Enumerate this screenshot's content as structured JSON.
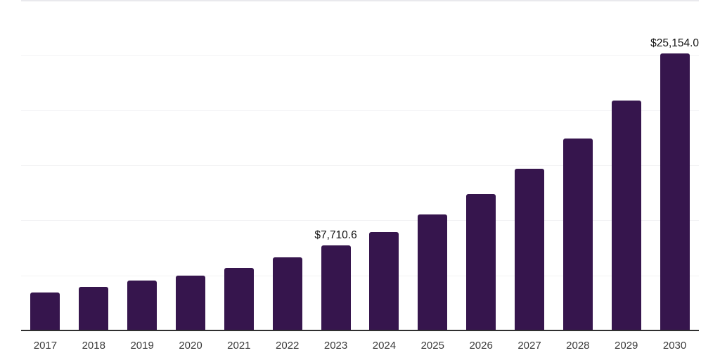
{
  "chart_data": {
    "type": "bar",
    "title": "",
    "xlabel": "",
    "ylabel": "",
    "categories": [
      "2017",
      "2018",
      "2019",
      "2020",
      "2021",
      "2022",
      "2023",
      "2024",
      "2025",
      "2026",
      "2027",
      "2028",
      "2029",
      "2030"
    ],
    "values": [
      3450.0,
      3960.0,
      4540.0,
      4990.0,
      5690.0,
      6650.0,
      7710.6,
      8950.0,
      10540.0,
      12400.0,
      14700.0,
      17450.0,
      20900.0,
      25154.0
    ],
    "annotations": [
      {
        "index": 6,
        "text": "$7,710.6"
      },
      {
        "index": 13,
        "text": "$25,154.0"
      }
    ],
    "ylim": [
      0,
      30000
    ],
    "gridline_step": 5000,
    "grid_visible": true,
    "legend": "none",
    "colors": {
      "bar": "#36154d",
      "gridline": "#f2f2f4",
      "top_boundary": "#e9e9ed",
      "axis_line": "#303030",
      "annotation_text": "#111111",
      "tick_text": "#3a3a3a",
      "background": "#ffffff"
    }
  }
}
